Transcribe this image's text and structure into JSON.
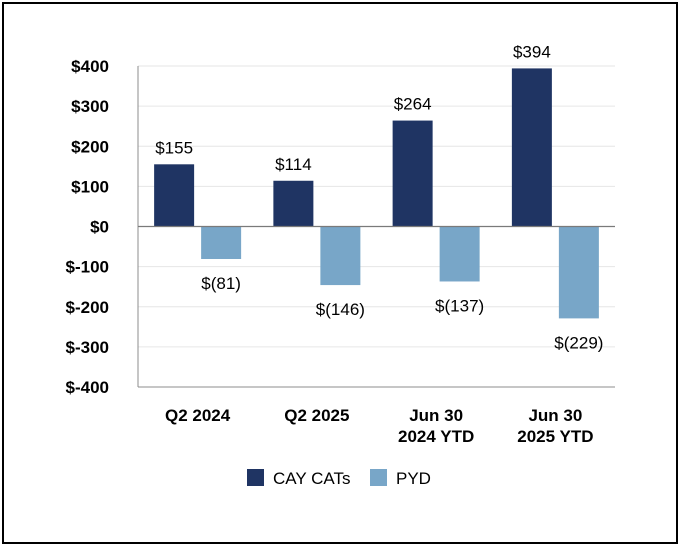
{
  "chart_data": {
    "type": "bar",
    "title": "",
    "xlabel": "",
    "ylabel": "",
    "ylim": [
      -400,
      400
    ],
    "yticks": [
      {
        "value": 400,
        "label": "$400"
      },
      {
        "value": 300,
        "label": "$300"
      },
      {
        "value": 200,
        "label": "$200"
      },
      {
        "value": 100,
        "label": "$100"
      },
      {
        "value": 0,
        "label": "$0"
      },
      {
        "value": -100,
        "label": "$-100"
      },
      {
        "value": -200,
        "label": "$-200"
      },
      {
        "value": -300,
        "label": "$-300"
      },
      {
        "value": -400,
        "label": "$-400"
      }
    ],
    "categories": [
      [
        "Q2 2024"
      ],
      [
        "Q2 2025"
      ],
      [
        "Jun 30",
        "2024 YTD"
      ],
      [
        "Jun 30",
        "2025 YTD"
      ]
    ],
    "series": [
      {
        "name": "CAY CATs",
        "color": "#1f3463",
        "values": [
          155,
          114,
          264,
          394
        ],
        "labels": [
          "$155",
          "$114",
          "$264",
          "$394"
        ]
      },
      {
        "name": "PYD",
        "color": "#78a6c8",
        "values": [
          -81,
          -146,
          -137,
          -229
        ],
        "labels": [
          "$(81)",
          "$(146)",
          "$(137)",
          "$(229)"
        ]
      }
    ],
    "grid": true,
    "legend_position": "bottom"
  }
}
